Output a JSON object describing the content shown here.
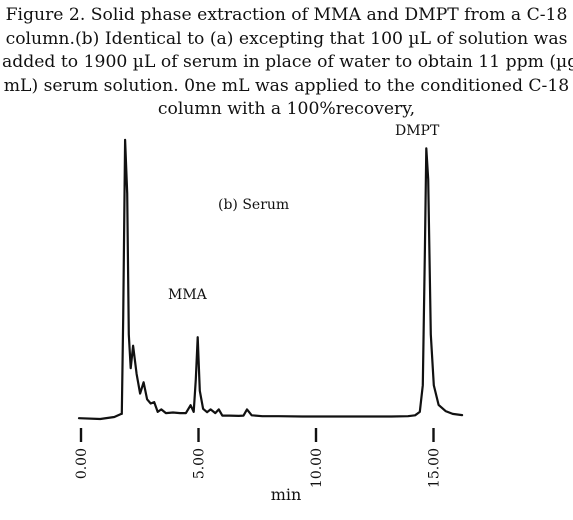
{
  "caption": {
    "lines": [
      "Figure 2. Solid phase extraction of MMA and DMPT from a C-18",
      "column.(b) Identical to (a) excepting that 100 µL of solution was",
      "added to 1900 µL of serum in place of water to obtain 11 ppm (µg/",
      "mL) serum solution. 0ne mL was applied to the conditioned C-18",
      "column with a 100%recovery,"
    ]
  },
  "chart_data": {
    "type": "line",
    "title": "",
    "xlabel": "min",
    "ylabel": "",
    "xlim": [
      -0.5,
      16.5
    ],
    "ylim": [
      0,
      100
    ],
    "x_ticks": [
      "0.00",
      "5.00",
      "10.00",
      "15.00"
    ],
    "x_tick_values": [
      0,
      5,
      10,
      15
    ],
    "grid": false,
    "annotations": [
      {
        "text": "(b) Serum"
      },
      {
        "text": "MMA",
        "x": 5.0
      },
      {
        "text": "DMPT",
        "x": 14.8
      }
    ],
    "series": [
      {
        "x": [
          0.0,
          0.9,
          1.5,
          1.8,
          1.82,
          1.88,
          1.96,
          2.05,
          2.12,
          2.2,
          2.3,
          2.45,
          2.6,
          2.75,
          2.9,
          3.05,
          3.2,
          3.35,
          3.5,
          3.7,
          4.0,
          4.3,
          4.55,
          4.75,
          4.88,
          4.97,
          5.05,
          5.14,
          5.28,
          5.45,
          5.6,
          5.8,
          5.95,
          6.1,
          6.4,
          6.8,
          7.0,
          7.15,
          7.35,
          7.8,
          8.5,
          9.5,
          10.5,
          11.5,
          12.5,
          13.3,
          14.0,
          14.3,
          14.5,
          14.63,
          14.72,
          14.78,
          14.86,
          14.97,
          15.1,
          15.3,
          15.6,
          15.9,
          16.3
        ],
        "y": [
          0.3,
          0.0,
          0.7,
          1.8,
          1.8,
          36.0,
          99.0,
          80.0,
          30.0,
          18.0,
          26.0,
          16.0,
          9.0,
          13.0,
          7.0,
          5.5,
          6.0,
          2.5,
          3.4,
          2.1,
          2.3,
          2.1,
          2.1,
          4.9,
          2.5,
          14.0,
          29.0,
          10.0,
          3.6,
          2.4,
          3.4,
          2.1,
          3.4,
          1.2,
          1.2,
          1.1,
          1.2,
          3.4,
          1.3,
          1.0,
          1.0,
          0.9,
          0.9,
          0.9,
          0.9,
          0.9,
          1.0,
          1.3,
          2.5,
          12.0,
          60.0,
          96.0,
          85.0,
          30.0,
          12.0,
          5.0,
          2.8,
          1.8,
          1.4
        ]
      }
    ]
  }
}
